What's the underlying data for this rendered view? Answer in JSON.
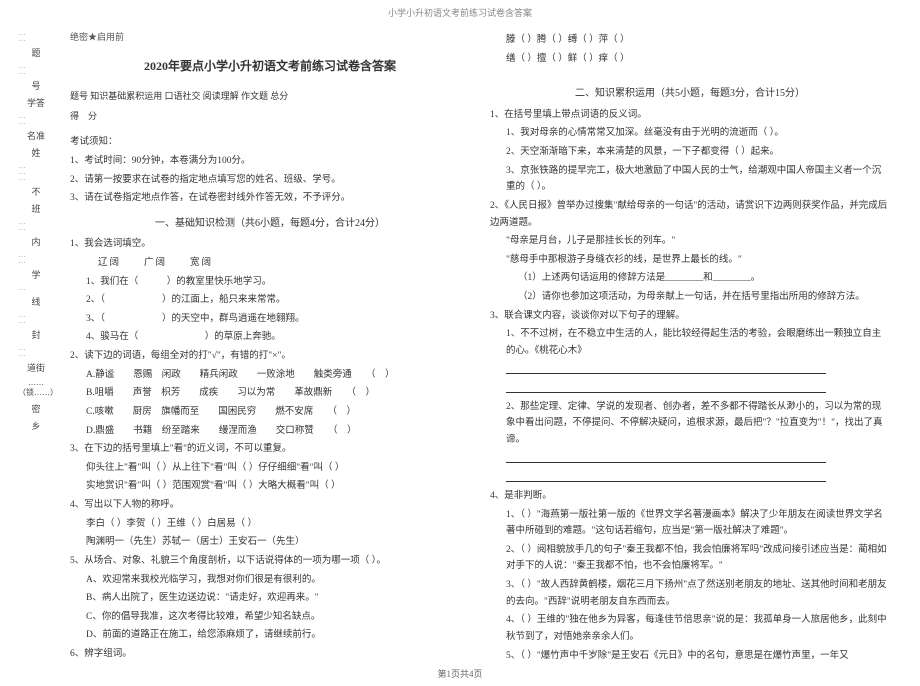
{
  "header": {
    "running_title": "小学小升初语文考前练习试卷含答案"
  },
  "left_margin": {
    "chars_top": [
      "题",
      "号",
      "学答",
      "名准",
      "姓"
    ],
    "chars_mid": [
      "不",
      "班",
      "内",
      "学",
      "线",
      "封",
      "道街",
      "密",
      "乡"
    ],
    "bracket_note": "……（锁……）"
  },
  "left_col": {
    "seal": "绝密★启用前",
    "doc_title": "2020年要点小学小升初语文考前练习试卷含答案",
    "score_header": "题号 知识基础累积运用 口语社交 阅读理解 作文题 总分",
    "score_row": "得　分",
    "exam_notice_title": "考试须知：",
    "notice_1": "1、考试时间：90分钟，本卷满分为100分。",
    "notice_2": "2、请第一按要求在试卷的指定地点填写您的姓名、班级、学号。",
    "notice_3": "3、请在试卷指定地点作答，在试卷密封线外作答无效，不予评分。",
    "section1_title": "一、基础知识检测（共6小题，每题4分，合计24分）",
    "q1": "1、我会选词填空。",
    "q1_opts": "辽阔　　广阔　　宽阔",
    "q1_1": "1、我们在（　　　）的教室里快乐地学习。",
    "q1_2": "2、（　　　　　　）的江面上，船只来来常常。",
    "q1_3": "3、（　　　　　　）的天空中，群鸟逍遥在地翱翔。",
    "q1_4": "4、骏马在（　　　　　　　）的草原上奔驰。",
    "q2": "2、读下边的词语，每组全对的打\"√\"，有错的打\"×\"。",
    "q2_a": "A.静谧　　恩赐　闲政　　精兵闲政　　一败涂地　　触类旁通　　（　）",
    "q2_b": "B.咀嚼　　声誉　枳芳　　成疾　　习以为常　　革故鼎新　　（　）",
    "q2_c": "C.咳嗽　　厨房　旗幡而至　　国困民穷　　燃不安席　　（　）",
    "q2_d": "D.鼎盛　　书籍　纷至踏来　　缦涅而渔　　交口称赞　　（　）",
    "q3": "3、在下边的括号里填上\"看\"的近义词，不可以重复。",
    "q3_1": "仰头往上\"看\"叫（ ）从上往下\"看\"叫（ ）仔仔细细\"看\"叫（ ）",
    "q3_2": "实地赏识\"看\"叫（ ）范围观赏\"看\"叫（ ）大略大概看\"叫（ ）",
    "q4": "4、写出以下人物的称呼。",
    "q4_1": "李白（ ）李贺（ ）王维（ ）白居易（ ）",
    "q4_2": "陶渊明一（先生）苏轼一（居士）王安石一（先生）",
    "q5": "5、从场合、对象、礼貌三个角度剖析，以下话说得体的一项为哪一项（ ）。",
    "q5_a": "A、欢迎常来我校光临学习，我想对你们很是有很利的。",
    "q5_b": "B、病人出院了，医生边送边说：\"请走好，欢迎再来。\"",
    "q5_c": "C、你的倡导我准，这次考得比较难，希望少知名缺点。",
    "q5_d": "D、前面的道路正在施工，给您添麻烦了，请继续前行。",
    "q6": "6、辨字组词。"
  },
  "right_col": {
    "top_pair_1": "滕（ ）腾（ ）缚（ ）萍（ ）",
    "top_pair_2": "缮（ ）擅（ ）鲜（ ）痒（ ）",
    "section2_title": "二、知识累积运用（共5小题，每题3分，合计15分）",
    "r1": "1、在括号里填上带点词语的反义词。",
    "r1_1": "1、我对母亲的心情常常又加深。丝毫没有由于光明的流逝而（ ）。",
    "r1_2": "2、天空渐渐暗下来，本来清楚的风景，一下子都变得（ ）起来。",
    "r1_3": "3、京张铁路的提早完工，极大地激励了中国人民的士气，给潮观中国人帝国主义者一个沉重的（ ）。",
    "r2": "2、《人民日报》曾举办过搜集\"献给母亲的一句话\"的活动，请赏识下边两则获奖作品，并完成后边两道题。",
    "r2_q1": "\"母亲是月台，儿子是那挂长长的列车。\"",
    "r2_q2": "\"慈母手中那根游子身缝衣衫的线，是世界上最长的线。\"",
    "r2_a": "（1）上述两句话运用的修辞方法是________和________。",
    "r2_b": "（2）请你也参加这项活动，为母亲献上一句话，并在括号里指出所用的修辞方法。",
    "r3": "3、联合课文内容，谈谈你对以下句子的理解。",
    "r3_1": "1、不不过树，在不稳立中生活的人，能比较经得起生活的考验，会眼磨练出一颗独立自主的心。《桃花心木》",
    "r3_2": "2、那些定理、定律、学说的发现者、创办者，差不多都不得踏长从渺小的，习以为常的现象中看出问题，不停提问、不停解决疑问，追根求源，最后把\"？\"拉直变为\"！\"，找出了真谛。",
    "r4": "4、是非判断。",
    "r4_1": "1、（ ）\"海燕第一版社第一版的《世界文学名著漫画本》解决了少年朋友在阅读世界文学名著中所碰到的难题。\"这句话若缩句，应当是\"第一版社解决了难题\"。",
    "r4_2": "2、（ ）阅相貌放手几的句子\"秦王我都不怕，我会怕廉将军吗\"改成问接引述应当是：蔺相如对手下的人说：\"秦王我都不怕，也不会怕廉将军。\"",
    "r4_3": "3、（ ）\"故人西辞黄鹤楼，烟花三月下扬州\"点了然送别老朋友的地址、送其他时间和老朋友的去向。\"西辞\"说明老朋友自东西而去。",
    "r4_4": "4、（ ）王维的\"独在他乡为异客，每逢佳节倍思亲\"说的是：我孤单身一人旅居他乡，此刻中秋节到了，对悟她亲亲余人们。",
    "r4_5": "5、（ ）\"爆竹声中千岁除\"是王安石《元日》中的名句，意思是在爆竹声里，一年又"
  },
  "footer": {
    "page": "第1页共4页"
  }
}
